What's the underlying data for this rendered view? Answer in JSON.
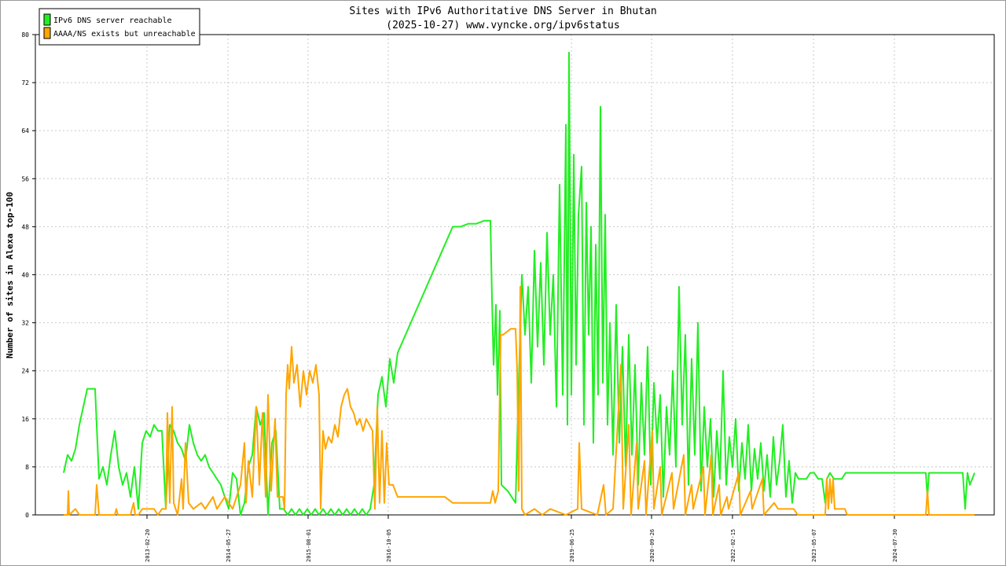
{
  "chart_data": {
    "type": "line",
    "title": "Sites with IPv6 Authoritative DNS Server in Bhutan",
    "subtitle": "(2025-10-27) www.vyncke.org/ipv6status",
    "y_label": "Number of sites in Alexa top-100",
    "ylim": [
      0,
      80
    ],
    "yticks": [
      0,
      8,
      16,
      24,
      32,
      40,
      48,
      56,
      64,
      72,
      80
    ],
    "xlim": [
      45,
      1265
    ],
    "xticks": [
      {
        "value": 187,
        "label": "2013-02-20"
      },
      {
        "value": 290,
        "label": "2014-05-27"
      },
      {
        "value": 392,
        "label": "2015-08-01"
      },
      {
        "value": 494,
        "label": "2016-10-05"
      },
      {
        "value": 727,
        "label": "2019-06-25"
      },
      {
        "value": 829,
        "label": "2020-09-26"
      },
      {
        "value": 932,
        "label": "2022-02-15"
      },
      {
        "value": 1035,
        "label": "2023-05-07"
      },
      {
        "value": 1138,
        "label": "2024-07-30"
      }
    ],
    "grid": true,
    "legend": "top-left",
    "series": [
      {
        "name": "IPv6 DNS server reachable",
        "color": "#22ee22",
        "x": [
          81,
          86,
          91,
          96,
          101,
          106,
          111,
          116,
          121,
          126,
          131,
          136,
          141,
          146,
          151,
          156,
          161,
          166,
          171,
          176,
          181,
          186,
          191,
          196,
          201,
          206,
          211,
          216,
          221,
          226,
          231,
          236,
          241,
          246,
          251,
          256,
          261,
          266,
          271,
          276,
          281,
          286,
          291,
          296,
          301,
          306,
          311,
          316,
          321,
          326,
          331,
          336,
          341,
          346,
          351,
          356,
          361,
          366,
          371,
          376,
          381,
          386,
          391,
          396,
          401,
          406,
          411,
          416,
          421,
          426,
          431,
          436,
          441,
          446,
          451,
          456,
          461,
          466,
          471,
          476,
          481,
          486,
          491,
          496,
          501,
          506,
          516,
          526,
          536,
          546,
          556,
          566,
          576,
          586,
          596,
          606,
          616,
          624,
          626,
          628,
          631,
          633,
          636,
          638,
          646,
          656,
          660,
          664,
          668,
          672,
          676,
          680,
          684,
          688,
          692,
          696,
          700,
          704,
          708,
          712,
          716,
          720,
          722,
          724,
          727,
          730,
          733,
          736,
          740,
          743,
          746,
          749,
          752,
          755,
          758,
          761,
          764,
          767,
          770,
          773,
          776,
          780,
          784,
          788,
          792,
          796,
          800,
          804,
          808,
          812,
          816,
          820,
          824,
          828,
          832,
          836,
          840,
          844,
          848,
          852,
          856,
          860,
          864,
          868,
          872,
          876,
          880,
          884,
          888,
          892,
          896,
          900,
          904,
          908,
          912,
          916,
          920,
          924,
          928,
          932,
          936,
          940,
          944,
          948,
          952,
          956,
          960,
          964,
          968,
          972,
          976,
          980,
          984,
          988,
          992,
          996,
          1000,
          1004,
          1008,
          1012,
          1016,
          1026,
          1031,
          1036,
          1041,
          1046,
          1050,
          1052,
          1056,
          1061,
          1066,
          1071,
          1076,
          1090,
          1120,
          1150,
          1178,
          1180,
          1182,
          1210,
          1225,
          1228,
          1231,
          1234,
          1237,
          1240
        ],
        "values": [
          7,
          10,
          9,
          11,
          15,
          18,
          21,
          21,
          21,
          6,
          8,
          5,
          10,
          14,
          8,
          5,
          7,
          3,
          8,
          1,
          12,
          14,
          13,
          15,
          14,
          14,
          1,
          15,
          14,
          12,
          11,
          9,
          15,
          12,
          10,
          9,
          10,
          8,
          7,
          6,
          5,
          3,
          1,
          7,
          6,
          0,
          2,
          8,
          10,
          18,
          15,
          17,
          0,
          12,
          14,
          1,
          1,
          0,
          1,
          0,
          1,
          0,
          1,
          0,
          1,
          0,
          1,
          0,
          1,
          0,
          1,
          0,
          1,
          0,
          1,
          0,
          1,
          0,
          1,
          5,
          20,
          23,
          18,
          26,
          22,
          27,
          30,
          33,
          36,
          39,
          42,
          45,
          48,
          48,
          48.5,
          48.5,
          49,
          49,
          36,
          25,
          35,
          20,
          34,
          5,
          4,
          2,
          22,
          40,
          30,
          38,
          22,
          44,
          28,
          42,
          25,
          47,
          30,
          40,
          18,
          55,
          20,
          65,
          15,
          77,
          20,
          60,
          25,
          50,
          58,
          15,
          52,
          30,
          48,
          12,
          45,
          20,
          68,
          22,
          50,
          15,
          32,
          10,
          35,
          12,
          28,
          8,
          30,
          10,
          25,
          5,
          22,
          10,
          28,
          5,
          22,
          12,
          20,
          3,
          18,
          10,
          24,
          8,
          38,
          15,
          30,
          5,
          26,
          10,
          32,
          4,
          18,
          8,
          16,
          3,
          14,
          6,
          24,
          5,
          13,
          8,
          16,
          4,
          12,
          6,
          15,
          4,
          11,
          6,
          12,
          4,
          10,
          3,
          13,
          5,
          9,
          15,
          3,
          9,
          2,
          7,
          6,
          6,
          7,
          7,
          6,
          6,
          2,
          6,
          7,
          6,
          6,
          6,
          7,
          7,
          7,
          7,
          7,
          3,
          7,
          7,
          7,
          1,
          7,
          5,
          6,
          7
        ]
      },
      {
        "name": "AAAA/NS exists but unreachable",
        "color": "#ffa500",
        "x": [
          81,
          86,
          87,
          88,
          96,
          101,
          121,
          123,
          126,
          146,
          148,
          150,
          166,
          170,
          172,
          176,
          181,
          186,
          196,
          201,
          206,
          211,
          213,
          216,
          219,
          221,
          226,
          231,
          233,
          236,
          240,
          246,
          256,
          261,
          266,
          271,
          276,
          281,
          286,
          291,
          296,
          301,
          306,
          311,
          313,
          316,
          321,
          326,
          330,
          334,
          338,
          341,
          345,
          350,
          353,
          356,
          360,
          362,
          364,
          366,
          368,
          371,
          374,
          378,
          382,
          386,
          390,
          394,
          398,
          402,
          406,
          408,
          411,
          414,
          418,
          422,
          426,
          430,
          434,
          438,
          442,
          446,
          450,
          454,
          458,
          462,
          466,
          470,
          474,
          477,
          480,
          483,
          486,
          489,
          492,
          495,
          500,
          506,
          526,
          546,
          566,
          576,
          586,
          606,
          624,
          627,
          630,
          634,
          637,
          640,
          650,
          656,
          658,
          660,
          662,
          664,
          668,
          680,
          690,
          700,
          720,
          735,
          737,
          740,
          760,
          768,
          771,
          780,
          790,
          793,
          800,
          803,
          810,
          812,
          820,
          822,
          830,
          832,
          840,
          842,
          855,
          857,
          870,
          872,
          880,
          882,
          895,
          897,
          905,
          907,
          915,
          917,
          925,
          927,
          940,
          942,
          955,
          957,
          970,
          972,
          985,
          990,
          1000,
          1010,
          1015,
          1040,
          1050,
          1052,
          1054,
          1056,
          1058,
          1060,
          1062,
          1065,
          1075,
          1078,
          1178,
          1180,
          1182,
          1240
        ],
        "values": [
          0,
          0,
          4,
          0,
          1,
          0,
          0,
          5,
          0,
          0,
          1,
          0,
          0,
          2,
          0,
          0,
          1,
          1,
          1,
          0,
          1,
          1,
          17,
          2,
          18,
          2,
          0,
          6,
          1,
          12,
          2,
          1,
          2,
          1,
          2,
          3,
          1,
          2,
          3,
          2,
          1,
          3,
          5,
          12,
          2,
          9,
          3,
          18,
          5,
          17,
          3,
          20,
          4,
          16,
          3,
          3,
          3,
          1,
          20,
          25,
          21,
          28,
          22,
          25,
          18,
          24,
          20,
          24,
          22,
          25,
          20,
          1,
          14,
          11,
          13,
          12,
          15,
          13,
          18,
          20,
          21,
          18,
          17,
          15,
          16,
          14,
          16,
          15,
          14,
          1,
          18,
          2,
          14,
          2,
          12,
          5,
          5,
          3,
          3,
          3,
          3,
          2,
          2,
          2,
          2,
          4,
          2,
          4,
          30,
          30,
          31,
          31,
          24,
          4,
          38,
          1,
          0,
          1,
          0,
          1,
          0,
          1,
          12,
          1,
          0,
          5,
          0,
          1,
          25,
          1,
          15,
          0,
          12,
          1,
          9,
          0,
          14,
          1,
          8,
          0,
          7,
          1,
          10,
          0,
          5,
          1,
          8,
          0,
          10,
          0,
          5,
          0,
          3,
          1,
          7,
          0,
          4,
          1,
          6,
          0,
          2,
          1,
          1,
          1,
          0,
          0,
          0,
          6,
          1,
          6,
          2,
          6,
          1,
          1,
          1,
          0,
          0,
          4,
          0,
          0
        ]
      }
    ]
  }
}
